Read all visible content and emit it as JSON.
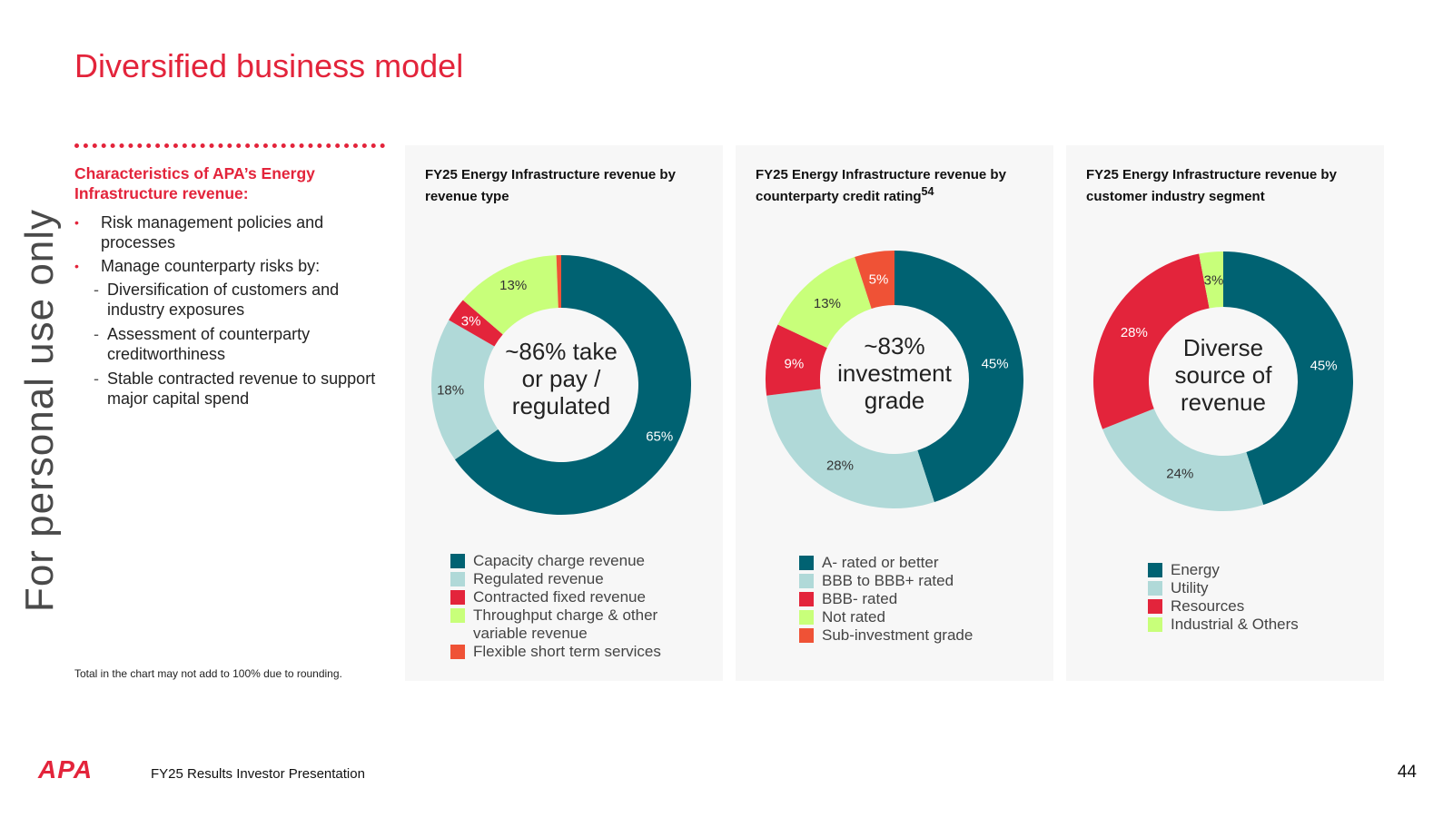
{
  "watermark": "For personal use only",
  "title": "Diversified business model",
  "left": {
    "heading": "Characteristics of APA’s Energy Infrastructure revenue:",
    "bullets": [
      "Risk management policies and processes",
      "Manage counterparty risks by:"
    ],
    "sub_bullets": [
      "Diversification of customers and industry exposures",
      "Assessment of counterparty creditworthiness",
      "Stable contracted revenue to support major capital spend"
    ],
    "footnote": "Total in the chart may not add to 100% due to rounding."
  },
  "colors": {
    "accent": "#e3243b",
    "teal": "#006272",
    "light_teal": "#b0d9d8",
    "red": "#e3243b",
    "lime": "#c8ff7a",
    "orange": "#ef5236"
  },
  "chart_data": [
    {
      "type": "pie",
      "title": "FY25 Energy Infrastructure revenue by revenue type",
      "title_sup": "",
      "center_text": [
        "~86% take",
        "or pay /",
        "regulated"
      ],
      "categories": [
        "Capacity charge revenue",
        "Regulated revenue",
        "Contracted fixed revenue",
        "Throughput charge & other variable revenue",
        "Flexible short term services"
      ],
      "values": [
        65,
        18,
        3,
        13,
        0.6
      ],
      "labels": [
        "65%",
        "18%",
        "3%",
        "13%",
        ""
      ],
      "colors": [
        "#006272",
        "#b0d9d8",
        "#e3243b",
        "#c8ff7a",
        "#ef5236"
      ],
      "legend_lines": [
        [
          "Capacity charge revenue"
        ],
        [
          "Regulated revenue"
        ],
        [
          "Contracted fixed revenue"
        ],
        [
          "Throughput charge & other",
          "variable revenue"
        ],
        [
          "Flexible short term services"
        ]
      ]
    },
    {
      "type": "pie",
      "title": "FY25 Energy Infrastructure revenue by counterparty credit rating",
      "title_sup": "54",
      "center_text": [
        "~83%",
        "investment",
        "grade"
      ],
      "categories": [
        "A- rated or better",
        "BBB to BBB+ rated",
        "BBB- rated",
        "Not rated",
        "Sub-investment grade"
      ],
      "values": [
        45,
        28,
        9,
        13,
        5
      ],
      "labels": [
        "45%",
        "28%",
        "9%",
        "13%",
        "5%"
      ],
      "colors": [
        "#006272",
        "#b0d9d8",
        "#e3243b",
        "#c8ff7a",
        "#ef5236"
      ],
      "legend_lines": [
        [
          "A- rated or better"
        ],
        [
          "BBB to BBB+ rated"
        ],
        [
          "BBB- rated"
        ],
        [
          "Not rated"
        ],
        [
          "Sub-investment grade"
        ]
      ]
    },
    {
      "type": "pie",
      "title": "FY25 Energy Infrastructure revenue by customer industry segment",
      "title_sup": "",
      "center_text": [
        "Diverse",
        "source of",
        "revenue"
      ],
      "categories": [
        "Energy",
        "Utility",
        "Resources",
        "Industrial & Others"
      ],
      "values": [
        45,
        24,
        28,
        3
      ],
      "labels": [
        "45%",
        "24%",
        "28%",
        "3%"
      ],
      "colors": [
        "#006272",
        "#b0d9d8",
        "#e3243b",
        "#c8ff7a"
      ],
      "legend_lines": [
        [
          "Energy"
        ],
        [
          "Utility"
        ],
        [
          "Resources"
        ],
        [
          "Industrial & Others"
        ]
      ]
    }
  ],
  "footer": {
    "logo": "APA",
    "presentation_title": "FY25 Results Investor Presentation",
    "page_number": "44"
  }
}
